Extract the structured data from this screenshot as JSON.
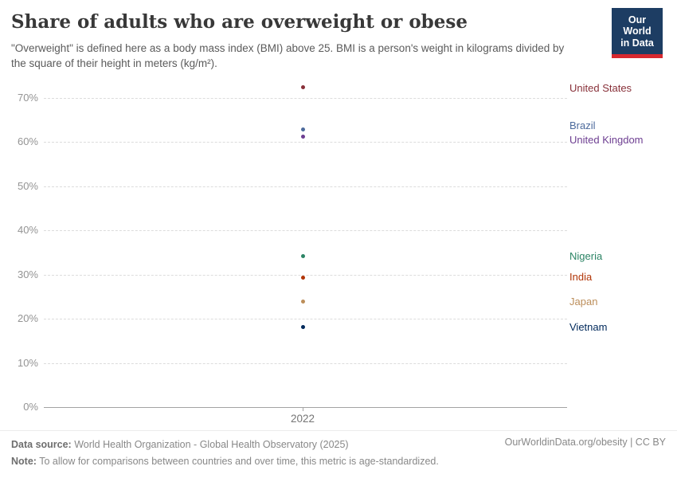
{
  "header": {
    "title": "Share of adults who are overweight or obese",
    "subtitle": "\"Overweight\" is defined here as a body mass index (BMI) above 25. BMI is a person's weight in kilograms divided by the square of their height in meters (kg/m²).",
    "logo_line1": "Our World",
    "logo_line2": "in Data",
    "logo_bg": "#1d3d63",
    "logo_accent": "#d7282f"
  },
  "chart_data": {
    "type": "scatter",
    "x": [
      2022
    ],
    "x_tick_label": "2022",
    "xlabel": "",
    "ylabel": "",
    "ylim": [
      0,
      75
    ],
    "y_ticks": [
      0,
      10,
      20,
      30,
      40,
      50,
      60,
      70
    ],
    "y_tick_suffix": "%",
    "grid": true,
    "legend_position": "right-labels",
    "series": [
      {
        "name": "United States",
        "year": 2022,
        "value": 72.5,
        "color": "#883039",
        "label_dy": 2
      },
      {
        "name": "Brazil",
        "year": 2022,
        "value": 62.8,
        "color": "#4C6A9C",
        "label_dy": -5
      },
      {
        "name": "United Kingdom",
        "year": 2022,
        "value": 61.3,
        "color": "#6D3E91",
        "label_dy": 5
      },
      {
        "name": "Nigeria",
        "year": 2022,
        "value": 34.1,
        "color": "#2C8465",
        "label_dy": 0
      },
      {
        "name": "India",
        "year": 2022,
        "value": 29.4,
        "color": "#B13507",
        "label_dy": 0
      },
      {
        "name": "Japan",
        "year": 2022,
        "value": 23.9,
        "color": "#BC8E5A",
        "label_dy": 0
      },
      {
        "name": "Vietnam",
        "year": 2022,
        "value": 18.1,
        "color": "#00295B",
        "label_dy": 0
      }
    ]
  },
  "footer": {
    "data_source_label": "Data source:",
    "data_source": "World Health Organization - Global Health Observatory (2025)",
    "note_label": "Note:",
    "note": "To allow for comparisons between countries and over time, this metric is age-standardized.",
    "credit": "OurWorldinData.org/obesity | CC BY"
  }
}
